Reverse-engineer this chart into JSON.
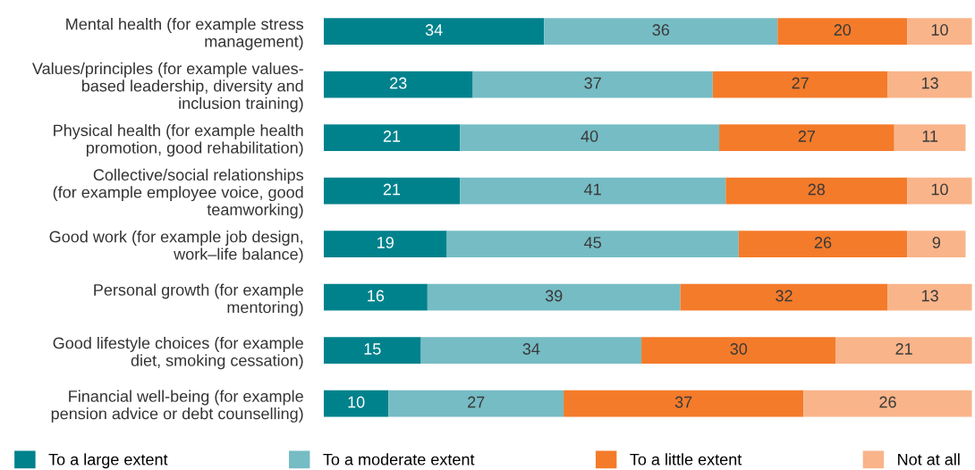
{
  "chart_data": {
    "type": "bar",
    "orientation": "horizontal",
    "stacked": true,
    "data_labels": true,
    "legend": "bottom",
    "grid": false,
    "tick_labels": "y",
    "categories": [
      "Mental health (for example stress\nmanagement)",
      "Values/principles (for example values-\nbased leadership, diversity and\ninclusion training)",
      "Physical health (for example health\npromotion, good rehabilitation)",
      "Collective/social relationships\n(for example employee voice, good\nteamworking)",
      "Good work (for example job design,\nwork–life balance)",
      "Personal growth (for example\nmentoring)",
      "Good lifestyle choices (for example\ndiet, smoking cessation)",
      "Financial well-being (for example\npension advice or debt counselling)"
    ],
    "series": [
      {
        "name": "To a large extent",
        "color": "#00828c",
        "values": [
          34,
          23,
          21,
          21,
          19,
          16,
          15,
          10
        ]
      },
      {
        "name": "To a moderate extent",
        "color": "#76bcc4",
        "values": [
          36,
          37,
          40,
          41,
          45,
          39,
          34,
          27
        ]
      },
      {
        "name": "To a little extent",
        "color": "#f47b2a",
        "values": [
          20,
          27,
          27,
          28,
          26,
          32,
          30,
          37
        ]
      },
      {
        "name": "Not at all",
        "color": "#f9b48a",
        "values": [
          10,
          13,
          11,
          10,
          9,
          13,
          21,
          26
        ]
      }
    ]
  }
}
